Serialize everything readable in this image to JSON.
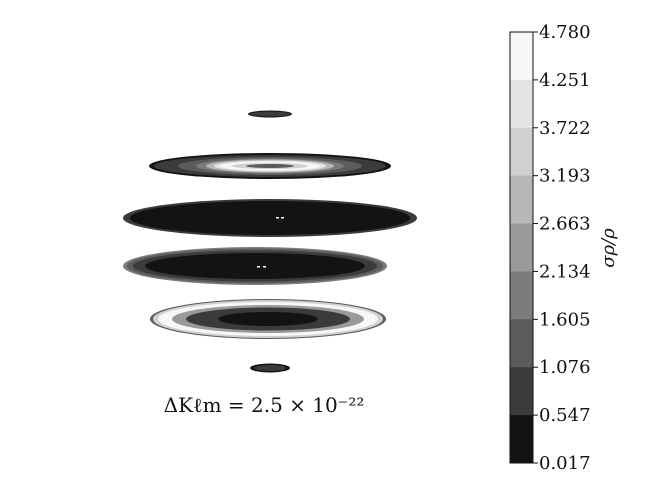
{
  "chart_data": {
    "type": "heatmap",
    "annotation": "ΔKℓm = 2.5 × 10⁻²²",
    "colorbar": {
      "label": "σρ/ρ",
      "ticks": [
        "4.780",
        "4.251",
        "3.722",
        "3.193",
        "2.663",
        "2.134",
        "1.605",
        "1.076",
        "0.547",
        "0.017"
      ],
      "min": 0.017,
      "max": 4.78,
      "level_colors": [
        "#f7f7f7",
        "#e4e4e4",
        "#d0d0d0",
        "#b7b7b7",
        "#9a9a9a",
        "#7c7c7c",
        "#5c5c5c",
        "#3b3b3b",
        "#131313"
      ]
    },
    "slices": [
      {
        "name": "slice-1",
        "max_value": 0.8
      },
      {
        "name": "slice-2",
        "max_value": 4.7
      },
      {
        "name": "slice-3",
        "max_value": 0.6
      },
      {
        "name": "slice-4",
        "max_value": 1.4
      },
      {
        "name": "slice-5",
        "max_value": 4.7
      },
      {
        "name": "slice-6",
        "max_value": 0.8
      }
    ]
  }
}
